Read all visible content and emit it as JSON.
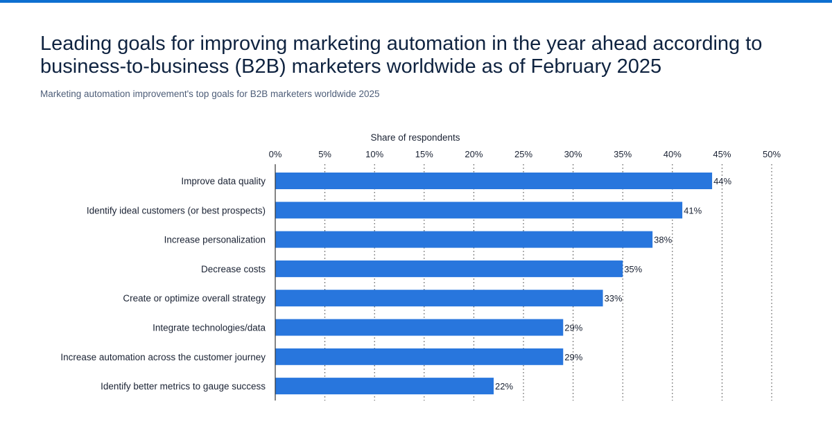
{
  "title": "Leading goals for improving marketing automation in the year ahead according to business-to-business (B2B) marketers worldwide as of February 2025",
  "subtitle": "Marketing automation improvement's top goals for B2B marketers worldwide 2025",
  "colors": {
    "bar": "#2876dd",
    "accent": "#0e6fd0",
    "title": "#0f2340"
  },
  "chart_data": {
    "type": "bar",
    "orientation": "horizontal",
    "xlabel": "Share of respondents",
    "xlim": [
      0,
      50
    ],
    "ticks": [
      "0%",
      "5%",
      "10%",
      "15%",
      "20%",
      "25%",
      "30%",
      "35%",
      "40%",
      "45%",
      "50%"
    ],
    "tick_values": [
      0,
      5,
      10,
      15,
      20,
      25,
      30,
      35,
      40,
      45,
      50
    ],
    "grid": "dotted vertical",
    "categories": [
      "Improve data quality",
      "Identify ideal customers (or best prospects)",
      "Increase personalization",
      "Decrease costs",
      "Create or optimize overall strategy",
      "Integrate technologies/data",
      "Increase automation across the customer journey",
      "Identify better metrics to gauge success"
    ],
    "values": [
      44,
      41,
      38,
      35,
      33,
      29,
      29,
      22
    ],
    "labels": [
      "44%",
      "41%",
      "38%",
      "35%",
      "33%",
      "29%",
      "29%",
      "22%"
    ]
  }
}
